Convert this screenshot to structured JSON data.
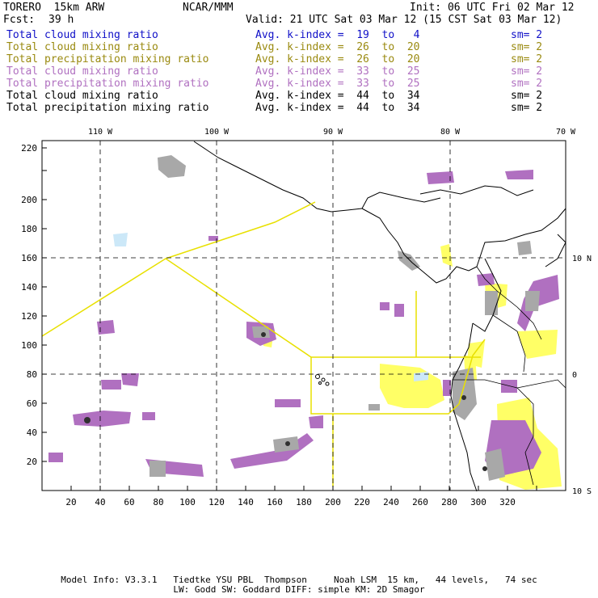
{
  "header": {
    "model": "TORERO  15km ARW",
    "org": "NCAR/MMM",
    "init": "Init: 06 UTC Fri 02 Mar 12",
    "fcst_label": "Fcst:",
    "fcst_hours": "39 h",
    "valid": "Valid: 21 UTC Sat 03 Mar 12 (15 CST Sat 03 Mar 12)"
  },
  "legend": [
    {
      "field": "Total cloud mixing ratio",
      "kindex": "Avg. k-index =  19  to   4",
      "sm": "sm= 2",
      "color": "#1010c8"
    },
    {
      "field": "Total cloud mixing ratio",
      "kindex": "Avg. k-index =  26  to  20",
      "sm": "sm= 2",
      "color": "#9a8a10"
    },
    {
      "field": "Total precipitation mixing ratio",
      "kindex": "Avg. k-index =  26  to  20",
      "sm": "sm= 2",
      "color": "#9a8a10"
    },
    {
      "field": "Total cloud mixing ratio",
      "kindex": "Avg. k-index =  33  to  25",
      "sm": "sm= 2",
      "color": "#b070c0"
    },
    {
      "field": "Total precipitation mixing ratio",
      "kindex": "Avg. k-index =  33  to  25",
      "sm": "sm= 2",
      "color": "#b070c0"
    },
    {
      "field": "Total cloud mixing ratio",
      "kindex": "Avg. k-index =  44  to  34",
      "sm": "sm= 2",
      "color": "#000000"
    },
    {
      "field": "Total precipitation mixing ratio",
      "kindex": "Avg. k-index =  44  to  34",
      "sm": "sm= 2",
      "color": "#000000"
    }
  ],
  "map": {
    "x_ticks": [
      "20",
      "40",
      "60",
      "80",
      "100",
      "120",
      "140",
      "160",
      "180",
      "200",
      "220",
      "240",
      "260",
      "280",
      "300",
      "320"
    ],
    "y_ticks": [
      "20",
      "40",
      "60",
      "80",
      "100",
      "120",
      "140",
      "160",
      "180",
      "200",
      "220"
    ],
    "lon_labels": [
      "110 W",
      "100 W",
      "90 W",
      "80 W",
      "70 W"
    ],
    "lat_labels": [
      "10 N",
      "0",
      "10 S"
    ]
  },
  "footer": {
    "line1": "Model Info: V3.3.1   Tiedtke YSU PBL  Thompson     Noah LSM  15 km,   44 levels,   74 sec",
    "line2": "LW: Godd SW: Goddard DIFF: simple KM: 2D Smagor"
  }
}
